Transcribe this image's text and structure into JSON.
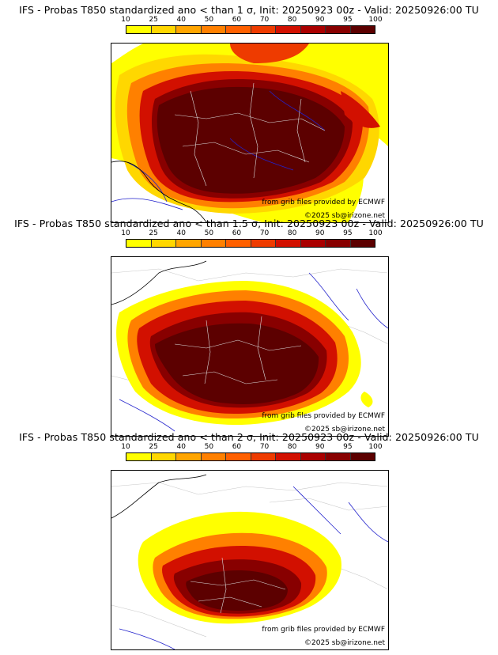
{
  "colorbar": {
    "labels": [
      "10",
      "25",
      "40",
      "50",
      "60",
      "70",
      "80",
      "90",
      "95",
      "100"
    ],
    "colors": [
      "#ffff00",
      "#ffd700",
      "#ffa500",
      "#ff8000",
      "#ff6000",
      "#ee3b00",
      "#d21000",
      "#aa0000",
      "#880000",
      "#5c0000"
    ]
  },
  "panels": [
    {
      "title": "IFS - Probas T850  standardized ano < than 1 σ, Init: 20250923 00z - Valid: 20250926:00 TU",
      "credit_grib": "from grib files provided by ECMWF",
      "credit_site": "©2025 sb@irizone.net"
    },
    {
      "title": "IFS - Probas T850  standardized ano < than 1.5 σ, Init: 20250923 00z - Valid: 20250926:00 TU",
      "credit_grib": "from grib files provided by ECMWF",
      "credit_site": "©2025 sb@irizone.net"
    },
    {
      "title": "IFS - Probas T850  standardized ano < than 2 σ, Init: 20250923 00z - Valid: 20250926:00 TU",
      "credit_grib": "from grib files provided by ECMWF",
      "credit_site": "©2025 sb@irizone.net"
    }
  ]
}
